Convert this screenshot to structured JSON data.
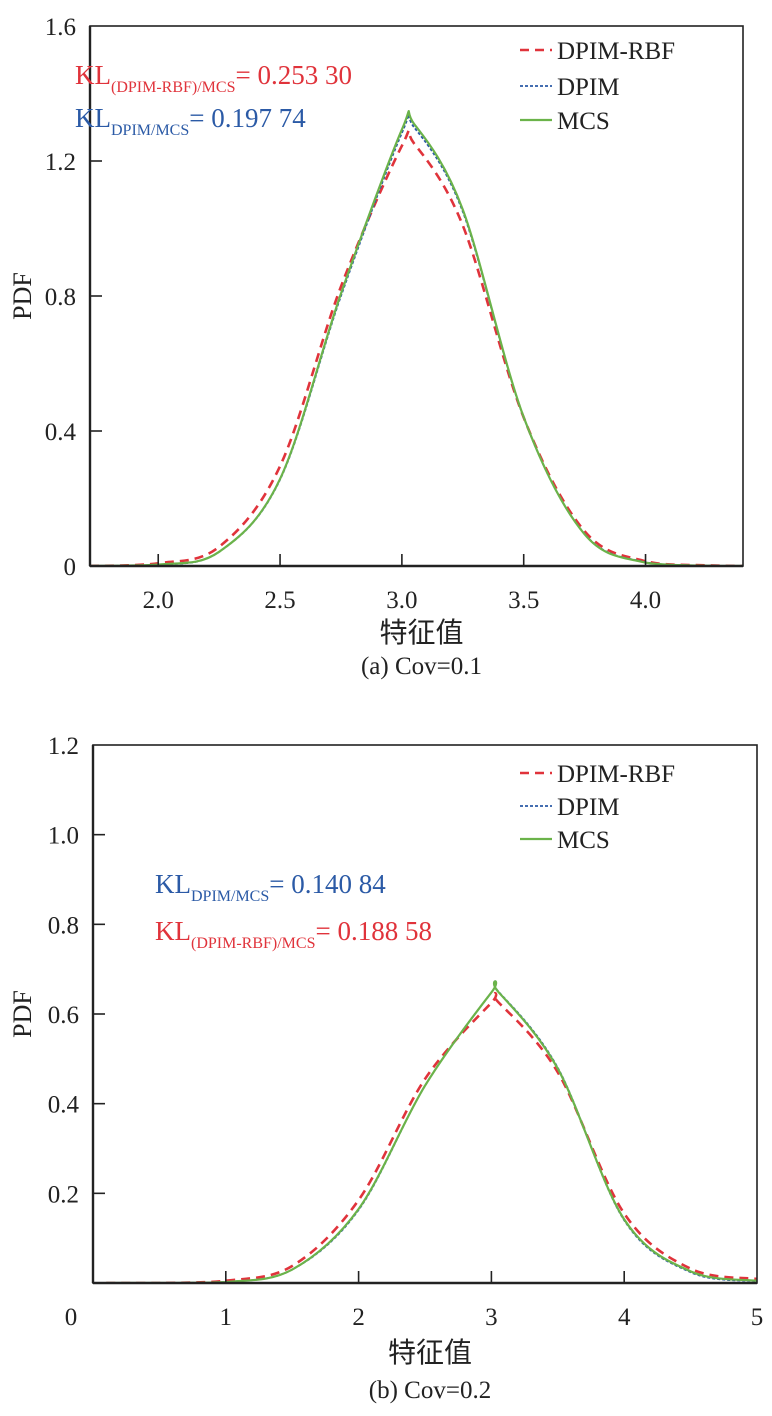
{
  "colors": {
    "rbf": "#e0333b",
    "dpim": "#2b5aa6",
    "mcs": "#6bb34a",
    "axis": "#222222"
  },
  "chart_data": [
    {
      "type": "line",
      "caption": "(a) Cov=0.1",
      "xlabel": "特征值",
      "ylabel": "PDF",
      "xlim": [
        1.72,
        4.4
      ],
      "ylim": [
        0,
        1.6
      ],
      "xticks": [
        2.0,
        2.5,
        3.0,
        3.5,
        4.0
      ],
      "xtick_labels": [
        "2.0",
        "2.5",
        "3.0",
        "3.5",
        "4.0"
      ],
      "yticks": [
        0,
        0.4,
        0.8,
        1.2,
        1.6
      ],
      "ytick_labels": [
        "0",
        "0.4",
        "0.8",
        "1.2",
        "1.6"
      ],
      "legend": {
        "placement": "top-right",
        "entries": [
          "DPIM-RBF",
          "DPIM",
          "MCS"
        ]
      },
      "annotations": [
        {
          "prefix": "KL",
          "sub": "(DPIM-RBF)/MCS",
          "value": "= 0.253 30",
          "series": "rbf"
        },
        {
          "prefix": "KL",
          "sub": "DPIM/MCS",
          "value": "= 0.197 74",
          "series": "dpim"
        }
      ],
      "x": [
        1.72,
        2.0,
        2.25,
        2.5,
        2.75,
        3.0,
        3.05,
        3.25,
        3.5,
        3.75,
        4.0,
        4.25,
        4.4
      ],
      "series": [
        {
          "name": "DPIM-RBF",
          "key": "rbf",
          "style": "dashed",
          "values": [
            0.0,
            0.008,
            0.057,
            0.296,
            0.828,
            1.245,
            1.252,
            1.009,
            0.44,
            0.103,
            0.014,
            0.002,
            0.0
          ]
        },
        {
          "name": "DPIM",
          "key": "dpim",
          "style": "dotted",
          "values": [
            0.0,
            0.003,
            0.042,
            0.256,
            0.8,
            1.283,
            1.3,
            1.05,
            0.44,
            0.095,
            0.011,
            0.001,
            0.0
          ]
        },
        {
          "name": "MCS",
          "key": "mcs",
          "style": "solid",
          "values": [
            0.0,
            0.004,
            0.042,
            0.258,
            0.807,
            1.293,
            1.31,
            1.056,
            0.441,
            0.094,
            0.01,
            0.001,
            0.0
          ]
        }
      ]
    },
    {
      "type": "line",
      "caption": "(b) Cov=0.2",
      "xlabel": "特征值",
      "ylabel": "PDF",
      "xlim": [
        0,
        5
      ],
      "ylim": [
        0,
        1.2
      ],
      "xticks": [
        0,
        1,
        2,
        3,
        4,
        5
      ],
      "xtick_labels": [
        "0",
        "1",
        "2",
        "3",
        "4",
        "5"
      ],
      "yticks": [
        0.2,
        0.4,
        0.6,
        0.8,
        1.0,
        1.2
      ],
      "ytick_labels": [
        "0.2",
        "0.4",
        "0.6",
        "0.8",
        "1.0",
        "1.2"
      ],
      "legend": {
        "placement": "top-right",
        "entries": [
          "DPIM-RBF",
          "DPIM",
          "MCS"
        ]
      },
      "annotations": [
        {
          "prefix": "KL",
          "sub": "DPIM/MCS",
          "value": "= 0.140 84",
          "series": "dpim"
        },
        {
          "prefix": "KL",
          "sub": "(DPIM-RBF)/MCS",
          "value": "= 0.188 58",
          "series": "rbf"
        }
      ],
      "x": [
        0.1,
        0.5,
        1.0,
        1.5,
        2.0,
        2.5,
        3.0,
        3.05,
        3.5,
        4.0,
        4.5,
        5.0
      ],
      "series": [
        {
          "name": "DPIM-RBF",
          "key": "rbf",
          "style": "dashed",
          "values": [
            0.0,
            0.0,
            0.005,
            0.038,
            0.185,
            0.455,
            0.625,
            0.627,
            0.47,
            0.155,
            0.032,
            0.009
          ]
        },
        {
          "name": "DPIM",
          "key": "dpim",
          "style": "dotted",
          "values": [
            0.0,
            0.0,
            0.002,
            0.03,
            0.163,
            0.44,
            0.648,
            0.651,
            0.48,
            0.14,
            0.024,
            0.004
          ]
        },
        {
          "name": "MCS",
          "key": "mcs",
          "style": "solid",
          "values": [
            0.0,
            0.0,
            0.002,
            0.03,
            0.165,
            0.44,
            0.648,
            0.65,
            0.478,
            0.142,
            0.026,
            0.005
          ]
        }
      ]
    }
  ]
}
